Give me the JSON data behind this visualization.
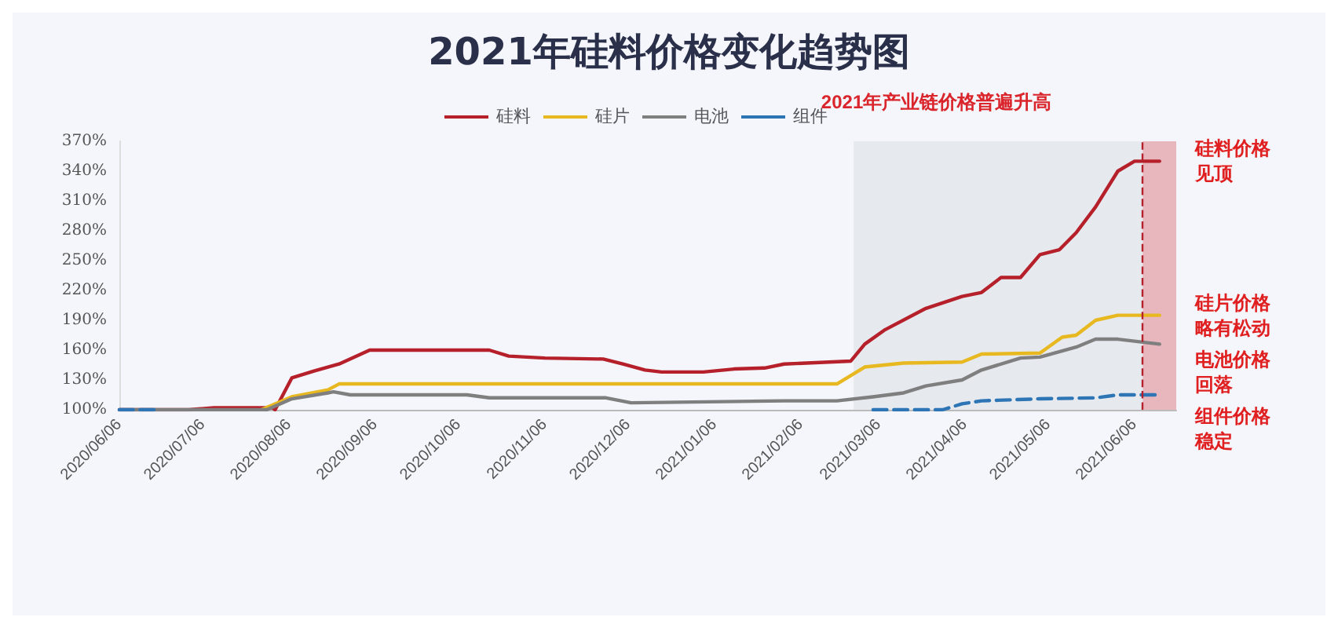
{
  "chart_data": {
    "type": "line",
    "title": "2021年硅料价格变化趋势图",
    "xlim": [
      "2020-06-06",
      "2021-06-21"
    ],
    "xticks": [
      {
        "value": "2020-06-06",
        "label": "2020/06/06"
      },
      {
        "value": "2020-07-06",
        "label": "2020/07/06"
      },
      {
        "value": "2020-08-06",
        "label": "2020/08/06"
      },
      {
        "value": "2020-09-06",
        "label": "2020/09/06"
      },
      {
        "value": "2020-10-06",
        "label": "2020/10/06"
      },
      {
        "value": "2020-11-06",
        "label": "2020/11/06"
      },
      {
        "value": "2020-12-06",
        "label": "2020/12/06"
      },
      {
        "value": "2021-01-06",
        "label": "2021/01/06"
      },
      {
        "value": "2021-02-06",
        "label": "2021/02/06"
      },
      {
        "value": "2021-03-06",
        "label": "2021/03/06"
      },
      {
        "value": "2021-04-06",
        "label": "2021/04/06"
      },
      {
        "value": "2021-05-06",
        "label": "2021/05/06"
      },
      {
        "value": "2021-06-06",
        "label": "2021/06/06"
      }
    ],
    "ylim": [
      100,
      370
    ],
    "yticks": [
      {
        "value": 100,
        "label": "100%"
      },
      {
        "value": 130,
        "label": "130%"
      },
      {
        "value": 160,
        "label": "160%"
      },
      {
        "value": 190,
        "label": "190%"
      },
      {
        "value": 220,
        "label": "220%"
      },
      {
        "value": 250,
        "label": "250%"
      },
      {
        "value": 280,
        "label": "280%"
      },
      {
        "value": 310,
        "label": "310%"
      },
      {
        "value": 340,
        "label": "340%"
      },
      {
        "value": 370,
        "label": "370%"
      }
    ],
    "grid": false,
    "legend": "top",
    "marker": "none",
    "series": [
      {
        "name": "硅料",
        "color": "#b5202a",
        "x": [
          "2020-06-06",
          "2020-07-01",
          "2020-07-10",
          "2020-07-31",
          "2020-08-01",
          "2020-08-07",
          "2020-08-15",
          "2020-08-24",
          "2020-09-04",
          "2020-10-17",
          "2020-10-24",
          "2020-11-06",
          "2020-11-27",
          "2020-12-04",
          "2020-12-12",
          "2020-12-18",
          "2021-01-02",
          "2021-01-13",
          "2021-01-24",
          "2021-01-31",
          "2021-02-24",
          "2021-03-01",
          "2021-03-08",
          "2021-03-23",
          "2021-04-05",
          "2021-04-12",
          "2021-04-19",
          "2021-04-26",
          "2021-05-03",
          "2021-05-10",
          "2021-05-16",
          "2021-05-23",
          "2021-05-31",
          "2021-06-06",
          "2021-06-15"
        ],
        "values": [
          100,
          100,
          102,
          102,
          100,
          132,
          139,
          146,
          160,
          160,
          154,
          152,
          151,
          146,
          140,
          138,
          138,
          141,
          142,
          146,
          149,
          166,
          180,
          202,
          214,
          218,
          233,
          233,
          256,
          261,
          278,
          304,
          340,
          350,
          350
        ]
      },
      {
        "name": "硅片",
        "color": "#e8b820",
        "x": [
          "2020-07-27",
          "2020-08-07",
          "2020-08-20",
          "2020-08-24",
          "2021-02-19",
          "2021-03-01",
          "2021-03-15",
          "2021-04-05",
          "2021-04-12",
          "2021-05-03",
          "2021-05-11",
          "2021-05-16",
          "2021-05-23",
          "2021-05-31",
          "2021-06-15"
        ],
        "values": [
          100,
          113,
          120,
          126,
          126,
          143,
          147,
          148,
          156,
          157,
          173,
          175,
          190,
          195,
          195
        ]
      },
      {
        "name": "电池",
        "color": "#7f7f7f",
        "x": [
          "2020-06-06",
          "2020-07-29",
          "2020-08-07",
          "2020-08-20",
          "2020-08-22",
          "2020-08-28",
          "2020-10-09",
          "2020-10-17",
          "2020-11-28",
          "2020-12-07",
          "2021-01-31",
          "2021-02-19",
          "2021-03-04",
          "2021-03-15",
          "2021-03-23",
          "2021-04-05",
          "2021-04-12",
          "2021-04-26",
          "2021-05-03",
          "2021-05-16",
          "2021-05-23",
          "2021-05-31",
          "2021-06-15"
        ],
        "values": [
          100,
          100,
          111,
          117,
          118,
          115,
          115,
          112,
          112,
          107,
          109,
          109,
          113,
          117,
          124,
          130,
          140,
          152,
          153,
          163,
          171,
          171,
          166
        ]
      },
      {
        "name": "组件",
        "color": "#2e75b6",
        "line_style": "dashed",
        "x": [
          "2020-06-06",
          "2020-06-20",
          "2021-03-03",
          "2021-03-04",
          "2021-03-29",
          "2021-04-05",
          "2021-04-12",
          "2021-05-03",
          "2021-05-23",
          "2021-05-31",
          "2021-06-15"
        ],
        "values": [
          100,
          100,
          null,
          100,
          100,
          106,
          109,
          111,
          112,
          115,
          115
        ]
      }
    ],
    "bands": [
      {
        "axis": "x",
        "from": "2021-02-25",
        "to": "2021-06-21",
        "label": "2021年产业链价格普遍升高",
        "color": "#dfe5ea"
      },
      {
        "axis": "x",
        "from": "2021-06-09",
        "to": "2021-06-21",
        "color": "#e8a0a8"
      }
    ],
    "ref_lines": [
      {
        "axis": "x",
        "value": "2021-06-09",
        "color": "#b5202a",
        "line_style": "dashed"
      }
    ],
    "annotations": [
      "硅料价格见顶",
      "硅片价格略有松动",
      "电池价格回落",
      "组件价格稳定"
    ]
  }
}
